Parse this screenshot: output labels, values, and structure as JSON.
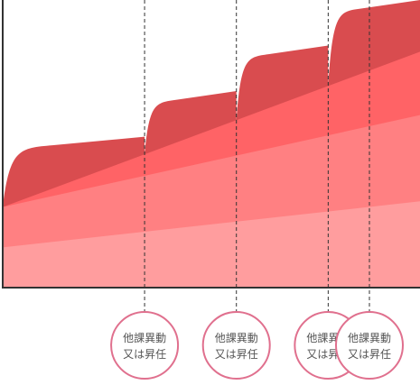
{
  "chart_data": {
    "type": "area",
    "title": "",
    "xlabel": "",
    "ylabel": "",
    "grid": false,
    "legend": "none",
    "ylim": [
      0,
      100
    ],
    "layers": [
      {
        "color": "#ff9d9e",
        "start": 14,
        "end": 30
      },
      {
        "color": "#ff8082",
        "start": 28,
        "end": 60
      },
      {
        "color": "#ff6366",
        "start": 28,
        "end": 82
      },
      {
        "color": "#d94c4f",
        "start": 28,
        "end": 100
      }
    ],
    "event_markers": [
      {
        "x": 0.34,
        "label": [
          "他課異動",
          "又は昇任"
        ]
      },
      {
        "x": 0.56,
        "label": [
          "他課異動",
          "又は昇任"
        ]
      },
      {
        "x": 0.78,
        "label": [
          "他課異動",
          "又は昇任"
        ]
      },
      {
        "x": 1.0,
        "label": [
          "他課異動",
          "又は昇任"
        ]
      }
    ],
    "marker_circle_color": "#e0708e"
  }
}
